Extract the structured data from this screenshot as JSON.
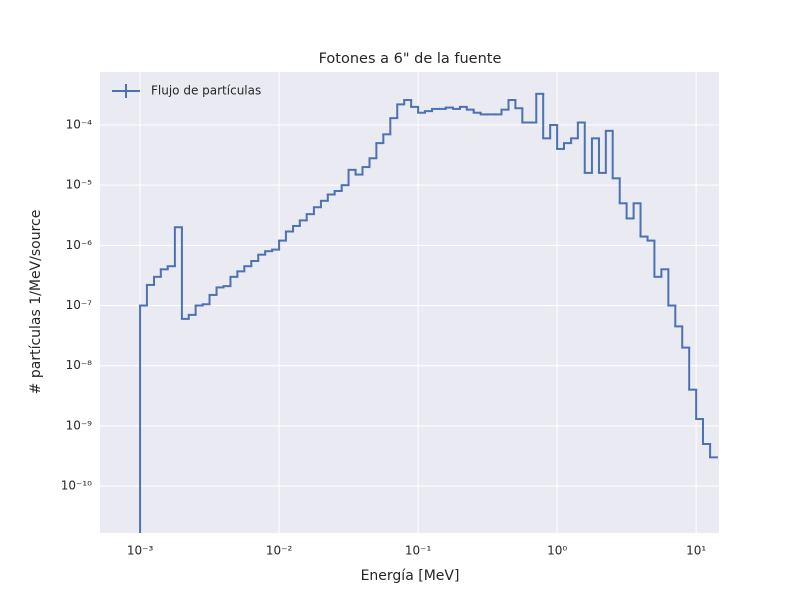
{
  "chart_data": {
    "type": "histogram",
    "title": "Fotones a 6\" de la fuente",
    "xlabel": "Energía [MeV]",
    "ylabel": "# partículas 1/MeV/source",
    "xscale": "log",
    "yscale": "log",
    "grid": true,
    "legend": "upper left",
    "xlim": [
      0.000515,
      14.6
    ],
    "ylim": [
      1.66e-11,
      0.00076
    ],
    "xticks": [
      {
        "value": 0.001,
        "label": "10⁻³"
      },
      {
        "value": 0.01,
        "label": "10⁻²"
      },
      {
        "value": 0.1,
        "label": "10⁻¹"
      },
      {
        "value": 1,
        "label": "10⁰"
      },
      {
        "value": 10,
        "label": "10¹"
      }
    ],
    "yticks": [
      {
        "value": 1e-10,
        "label": "10⁻¹⁰"
      },
      {
        "value": 1e-09,
        "label": "10⁻⁹"
      },
      {
        "value": 1e-08,
        "label": "10⁻⁸"
      },
      {
        "value": 1e-07,
        "label": "10⁻⁷"
      },
      {
        "value": 1e-06,
        "label": "10⁻⁶"
      },
      {
        "value": 1e-05,
        "label": "10⁻⁵"
      },
      {
        "value": 0.0001,
        "label": "10⁻⁴"
      }
    ],
    "bins": [
      0.001,
      0.00112,
      0.00126,
      0.00141,
      0.00158,
      0.00178,
      0.002,
      0.00224,
      0.00251,
      0.00282,
      0.00316,
      0.00355,
      0.00398,
      0.00447,
      0.00501,
      0.00562,
      0.00631,
      0.00708,
      0.00794,
      0.00891,
      0.01,
      0.0112,
      0.0126,
      0.0141,
      0.0158,
      0.0178,
      0.02,
      0.0224,
      0.0251,
      0.0282,
      0.0316,
      0.0355,
      0.0398,
      0.0447,
      0.0501,
      0.0562,
      0.0631,
      0.0708,
      0.0794,
      0.0891,
      0.1,
      0.112,
      0.126,
      0.141,
      0.158,
      0.178,
      0.2,
      0.224,
      0.251,
      0.282,
      0.316,
      0.355,
      0.398,
      0.447,
      0.501,
      0.562,
      0.631,
      0.708,
      0.794,
      0.891,
      1,
      1.12,
      1.26,
      1.41,
      1.58,
      1.78,
      2,
      2.24,
      2.51,
      2.82,
      3.16,
      3.55,
      3.98,
      4.47,
      5.01,
      5.62,
      6.31,
      7.08,
      7.94,
      8.91,
      10,
      11.2,
      12.6,
      14.1
    ],
    "series": [
      {
        "name": "Flujo de partículas",
        "color": "#4c72b0",
        "values": [
          1e-07,
          2.2e-07,
          3e-07,
          4e-07,
          4.5e-07,
          2e-06,
          6e-08,
          7e-08,
          1e-07,
          1.05e-07,
          1.5e-07,
          2e-07,
          2.1e-07,
          3e-07,
          3.7e-07,
          4.5e-07,
          5.5e-07,
          7e-07,
          8e-07,
          8.5e-07,
          1.2e-06,
          1.7e-06,
          2.1e-06,
          2.6e-06,
          3.3e-06,
          4.3e-06,
          5.5e-06,
          7e-06,
          8e-06,
          1e-05,
          1.8e-05,
          1.5e-05,
          2e-05,
          2.8e-05,
          5e-05,
          7e-05,
          0.00013,
          0.00022,
          0.00026,
          0.0002,
          0.00016,
          0.00017,
          0.000185,
          0.000185,
          0.000195,
          0.000185,
          0.0002,
          0.00018,
          0.00016,
          0.00015,
          0.00015,
          0.00015,
          0.00018,
          0.00026,
          0.00019,
          0.00011,
          0.00011,
          0.00033,
          6e-05,
          0.0001,
          4e-05,
          5e-05,
          6e-05,
          0.00011,
          1.6e-05,
          6e-05,
          1.6e-05,
          8e-05,
          1.3e-05,
          5e-06,
          2.8e-06,
          5e-06,
          1.4e-06,
          1.2e-06,
          3e-07,
          4e-07,
          1e-07,
          4.5e-08,
          2e-08,
          4e-09,
          1.3e-09,
          5e-10,
          3e-10
        ]
      }
    ]
  }
}
